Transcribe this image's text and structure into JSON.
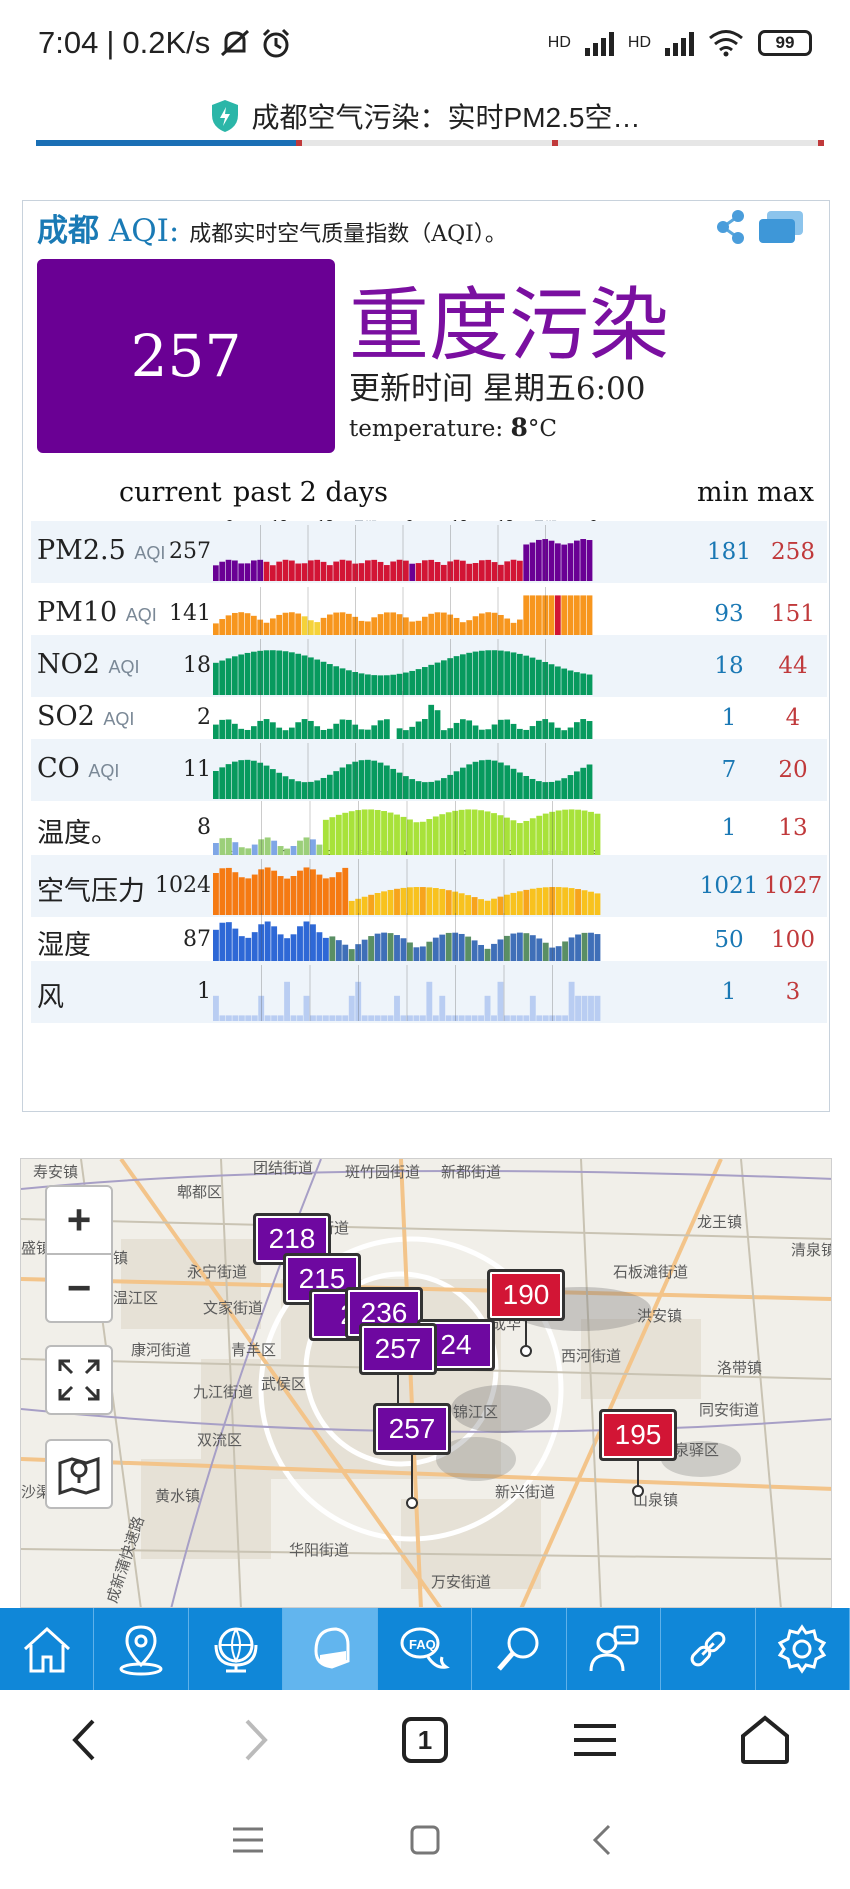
{
  "status_bar": {
    "time": "7:04",
    "speed": "0.2K/s",
    "net1": "HD",
    "net2": "HD",
    "battery": "99"
  },
  "browser": {
    "title": "成都空气污染：实时PM2.5空…"
  },
  "aqi": {
    "city": "成都",
    "aqi_label": "AQI:",
    "description": "成都实时空气质量指数（AQI）。",
    "value": "257",
    "level": "重度污染",
    "updated": "更新时间 星期五6:00",
    "temperature_label": "temperature:",
    "temperature_value": "8",
    "temperature_unit": "°C",
    "headers": {
      "current": "current",
      "past": "past 2 days",
      "min": "min",
      "max": "max"
    },
    "ticks": [
      "6",
      "12",
      "18",
      "星期四",
      "6",
      "12",
      "18",
      "星期五",
      "6"
    ],
    "colors": {
      "purple": "#6a0094",
      "red": "#d21535",
      "orange": "#f7961e",
      "yellow": "#f5d23a",
      "green": "#079a5e"
    },
    "rows": [
      {
        "name": "PM2.5",
        "unit": "AQI",
        "current": "257",
        "min": "181",
        "max": "258"
      },
      {
        "name": "PM10",
        "unit": "AQI",
        "current": "141",
        "min": "93",
        "max": "151"
      },
      {
        "name": "NO2",
        "unit": "AQI",
        "current": "18",
        "min": "18",
        "max": "44"
      },
      {
        "name": "SO2",
        "unit": "AQI",
        "current": "2",
        "min": "1",
        "max": "4"
      },
      {
        "name": "CO",
        "unit": "AQI",
        "current": "11",
        "min": "7",
        "max": "20"
      },
      {
        "name": "温度。",
        "unit": "",
        "current": "8",
        "min": "1",
        "max": "13"
      },
      {
        "name": "空气压力",
        "unit": "",
        "current": "1024",
        "min": "1021",
        "max": "1027"
      },
      {
        "name": "湿度",
        "unit": "",
        "current": "87",
        "min": "50",
        "max": "100"
      },
      {
        "name": "风",
        "unit": "",
        "current": "1",
        "min": "1",
        "max": "3"
      }
    ]
  },
  "map": {
    "labels": [
      "寿安镇",
      "郫都区",
      "团结街道",
      "斑竹园街道",
      "新都街道",
      "龙王镇",
      "安靖街道",
      "盛镇",
      "天府镇",
      "永宁街道",
      "清泉镇",
      "石板滩街道",
      "温江区",
      "文家街道",
      "成华",
      "洪安镇",
      "康河街道",
      "青羊区",
      "西河街道",
      "洛带镇",
      "九江街道",
      "武侯区",
      "锦江区",
      "同安街道",
      "双流区",
      "龙泉驿区",
      "沙渠街道",
      "黄水镇",
      "新兴街道",
      "山泉镇",
      "成新蒲快速路",
      "华阳街道",
      "万安街道"
    ],
    "markers": [
      {
        "value": "218",
        "color": "purple"
      },
      {
        "value": "215",
        "color": "purple"
      },
      {
        "value": "2",
        "color": "purple"
      },
      {
        "value": "236",
        "color": "purple"
      },
      {
        "value": "24",
        "color": "purple"
      },
      {
        "value": "257",
        "color": "purple"
      },
      {
        "value": "257",
        "color": "purple"
      },
      {
        "value": "190",
        "color": "red"
      },
      {
        "value": "195",
        "color": "red"
      }
    ],
    "zoom_in": "+",
    "zoom_out": "−"
  },
  "tabs": [
    {
      "icon": "home-icon"
    },
    {
      "icon": "location-pin-icon"
    },
    {
      "icon": "globe-icon"
    },
    {
      "icon": "mask-icon"
    },
    {
      "icon": "faq-icon"
    },
    {
      "icon": "search-icon"
    },
    {
      "icon": "support-icon"
    },
    {
      "icon": "link-icon"
    },
    {
      "icon": "gear-icon"
    }
  ],
  "nav": {
    "tab_count": "1"
  }
}
